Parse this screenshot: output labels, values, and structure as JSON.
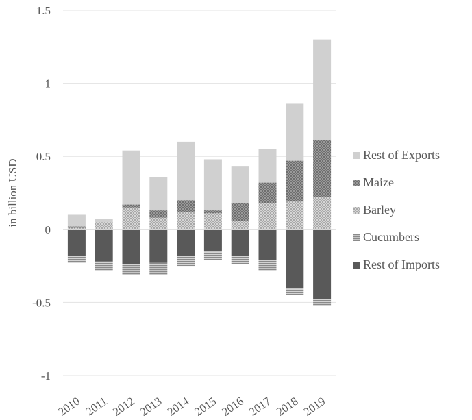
{
  "chart_data": {
    "type": "bar",
    "stacked": true,
    "title": "",
    "xlabel": "",
    "ylabel": "in billion USD",
    "ylim": [
      -1,
      1.5
    ],
    "yticks": [
      -1,
      -0.5,
      0,
      0.5,
      1,
      1.5
    ],
    "ytick_labels": [
      "-1",
      "-0.5",
      "0",
      "0.5",
      "1",
      "1.5"
    ],
    "grid": true,
    "legend_position": "right",
    "categories": [
      "2010",
      "2011",
      "2012",
      "2013",
      "2014",
      "2015",
      "2016",
      "2017",
      "2018",
      "2019"
    ],
    "series": [
      {
        "name": "Rest of Exports",
        "color": "#d0d0d0",
        "pattern": "solid",
        "values": [
          0.08,
          0.02,
          0.37,
          0.23,
          0.4,
          0.35,
          0.25,
          0.23,
          0.39,
          0.69
        ]
      },
      {
        "name": "Maize",
        "color": "#8c8c8c",
        "pattern": "dots",
        "values": [
          0.01,
          0.0,
          0.02,
          0.05,
          0.08,
          0.02,
          0.12,
          0.14,
          0.28,
          0.39
        ]
      },
      {
        "name": "Barley",
        "color": "#c6c6c6",
        "pattern": "checker",
        "values": [
          0.01,
          0.05,
          0.15,
          0.08,
          0.12,
          0.11,
          0.06,
          0.18,
          0.19,
          0.22
        ]
      },
      {
        "name": "Cucumbers",
        "color": "#ababab",
        "pattern": "hlines",
        "values": [
          -0.05,
          -0.06,
          -0.07,
          -0.08,
          -0.07,
          -0.06,
          -0.06,
          -0.07,
          -0.05,
          -0.04
        ]
      },
      {
        "name": "Rest of Imports",
        "color": "#595959",
        "pattern": "solid",
        "values": [
          -0.18,
          -0.22,
          -0.24,
          -0.23,
          -0.18,
          -0.15,
          -0.18,
          -0.21,
          -0.4,
          -0.48
        ]
      }
    ],
    "stack_order_positive": [
      "Barley",
      "Maize",
      "Rest of Exports"
    ],
    "stack_order_negative": [
      "Rest of Imports",
      "Cucumbers"
    ]
  }
}
